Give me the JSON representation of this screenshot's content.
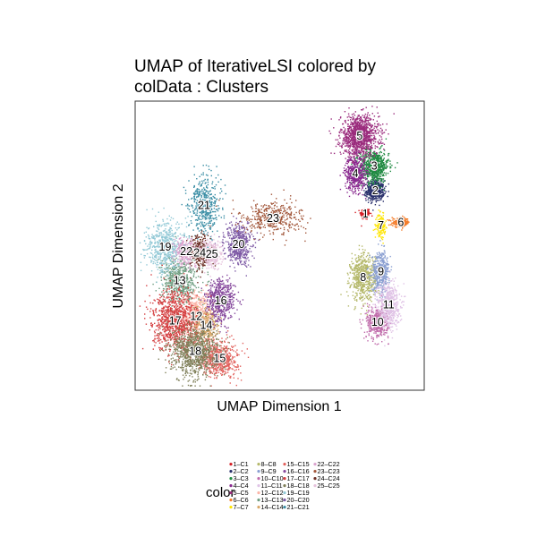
{
  "chart_data": {
    "type": "scatter",
    "title_line1": "UMAP of IterativeLSI  colored by",
    "title_line2": "colData :  Clusters",
    "xlabel": "UMAP Dimension 1",
    "ylabel": "UMAP Dimension 2",
    "legend_title": "color",
    "legend_placement": "bottom",
    "grid": false,
    "clusters": [
      {
        "label": "1",
        "name": "C1",
        "color": "#D51F26",
        "cx": 5.7,
        "cy": 8.2,
        "sx": 0.22,
        "sy": 0.2,
        "n": 180
      },
      {
        "label": "2",
        "name": "C2",
        "color": "#272E6A",
        "cx": 6.6,
        "cy": 9.8,
        "sx": 0.4,
        "sy": 0.35,
        "n": 450
      },
      {
        "label": "3",
        "name": "C3",
        "color": "#208A42",
        "cx": 6.5,
        "cy": 11.5,
        "sx": 0.65,
        "sy": 0.55,
        "n": 700
      },
      {
        "label": "4",
        "name": "C4",
        "color": "#89288F",
        "cx": 4.8,
        "cy": 11.0,
        "sx": 0.45,
        "sy": 0.6,
        "n": 500
      },
      {
        "label": "5",
        "name": "C5",
        "color": "#9B2C7D",
        "cx": 5.2,
        "cy": 13.6,
        "sx": 0.85,
        "sy": 0.7,
        "n": 1100
      },
      {
        "label": "6",
        "name": "C6",
        "color": "#F47D2B",
        "cx": 8.9,
        "cy": 7.6,
        "sx": 0.4,
        "sy": 0.15,
        "n": 200
      },
      {
        "label": "7",
        "name": "C7",
        "color": "#FEE500",
        "cx": 7.1,
        "cy": 7.4,
        "sx": 0.2,
        "sy": 0.35,
        "n": 200
      },
      {
        "label": "8",
        "name": "C8",
        "color": "#B5B86A",
        "cx": 5.5,
        "cy": 3.8,
        "sx": 0.55,
        "sy": 0.8,
        "n": 650
      },
      {
        "label": "9",
        "name": "C9",
        "color": "#8A9FD1",
        "cx": 7.1,
        "cy": 4.2,
        "sx": 0.4,
        "sy": 0.7,
        "n": 450
      },
      {
        "label": "10",
        "name": "C10",
        "color": "#C06CAB",
        "cx": 6.8,
        "cy": 0.7,
        "sx": 0.5,
        "sy": 0.55,
        "n": 450
      },
      {
        "label": "11",
        "name": "C11",
        "color": "#E0C3E6",
        "cx": 7.8,
        "cy": 1.9,
        "sx": 0.5,
        "sy": 0.8,
        "n": 550
      },
      {
        "label": "12",
        "name": "C12",
        "color": "#FBB4A7",
        "cx": -9.5,
        "cy": 1.1,
        "sx": 0.7,
        "sy": 0.9,
        "n": 500
      },
      {
        "label": "13",
        "name": "C13",
        "color": "#6E9D80",
        "cx": -11.0,
        "cy": 3.6,
        "sx": 0.8,
        "sy": 0.8,
        "n": 550
      },
      {
        "label": "14",
        "name": "C14",
        "color": "#D8A767",
        "cx": -8.6,
        "cy": 0.5,
        "sx": 0.55,
        "sy": 0.55,
        "n": 350
      },
      {
        "label": "15",
        "name": "C15",
        "color": "#E2615D",
        "cx": -7.4,
        "cy": -1.8,
        "sx": 0.8,
        "sy": 0.6,
        "n": 600
      },
      {
        "label": "16",
        "name": "C16",
        "color": "#85489C",
        "cx": -7.3,
        "cy": 2.2,
        "sx": 0.65,
        "sy": 0.75,
        "n": 550
      },
      {
        "label": "17",
        "name": "C17",
        "color": "#D53F41",
        "cx": -11.4,
        "cy": 0.8,
        "sx": 1.0,
        "sy": 1.0,
        "n": 1000
      },
      {
        "label": "18",
        "name": "C18",
        "color": "#7F7F59",
        "cx": -9.6,
        "cy": -1.3,
        "sx": 1.05,
        "sy": 0.85,
        "n": 1000
      },
      {
        "label": "19",
        "name": "C19",
        "color": "#92C9D6",
        "cx": -12.3,
        "cy": 5.9,
        "sx": 0.85,
        "sy": 0.9,
        "n": 550
      },
      {
        "label": "20",
        "name": "C20",
        "color": "#7D59A5",
        "cx": -5.7,
        "cy": 6.1,
        "sx": 0.6,
        "sy": 0.7,
        "n": 500
      },
      {
        "label": "21",
        "name": "C21",
        "color": "#3B8EA5",
        "cx": -8.8,
        "cy": 8.8,
        "sx": 0.7,
        "sy": 1.0,
        "n": 450
      },
      {
        "label": "22",
        "name": "C22",
        "color": "#DBA3CE",
        "cx": -10.4,
        "cy": 5.6,
        "sx": 0.5,
        "sy": 0.5,
        "n": 250
      },
      {
        "label": "23",
        "name": "C23",
        "color": "#A2573B",
        "cx": -2.6,
        "cy": 7.9,
        "sx": 1.4,
        "sy": 0.6,
        "n": 400
      },
      {
        "label": "24",
        "name": "C24",
        "color": "#6B2F24",
        "cx": -9.2,
        "cy": 5.5,
        "sx": 0.45,
        "sy": 0.6,
        "n": 300
      },
      {
        "label": "25",
        "name": "C25",
        "color": "#E6C2DC",
        "cx": -8.1,
        "cy": 5.4,
        "sx": 0.45,
        "sy": 0.5,
        "n": 300
      }
    ],
    "legend_entries": [
      [
        "1–C1",
        "8–C8",
        "15–C15",
        "22–C22"
      ],
      [
        "2–C2",
        "9–C9",
        "16–C16",
        "23–C23"
      ],
      [
        "3–C3",
        "10–C10",
        "17–C17",
        "24–C24"
      ],
      [
        "4–C4",
        "11–C11",
        "18–C18",
        "25–C25"
      ],
      [
        "5–C5",
        "12–C12",
        "19–C19"
      ],
      [
        "6–C6",
        "13–C13",
        "20–C20"
      ],
      [
        "7–C7",
        "14–C14",
        "21–C21"
      ]
    ]
  }
}
